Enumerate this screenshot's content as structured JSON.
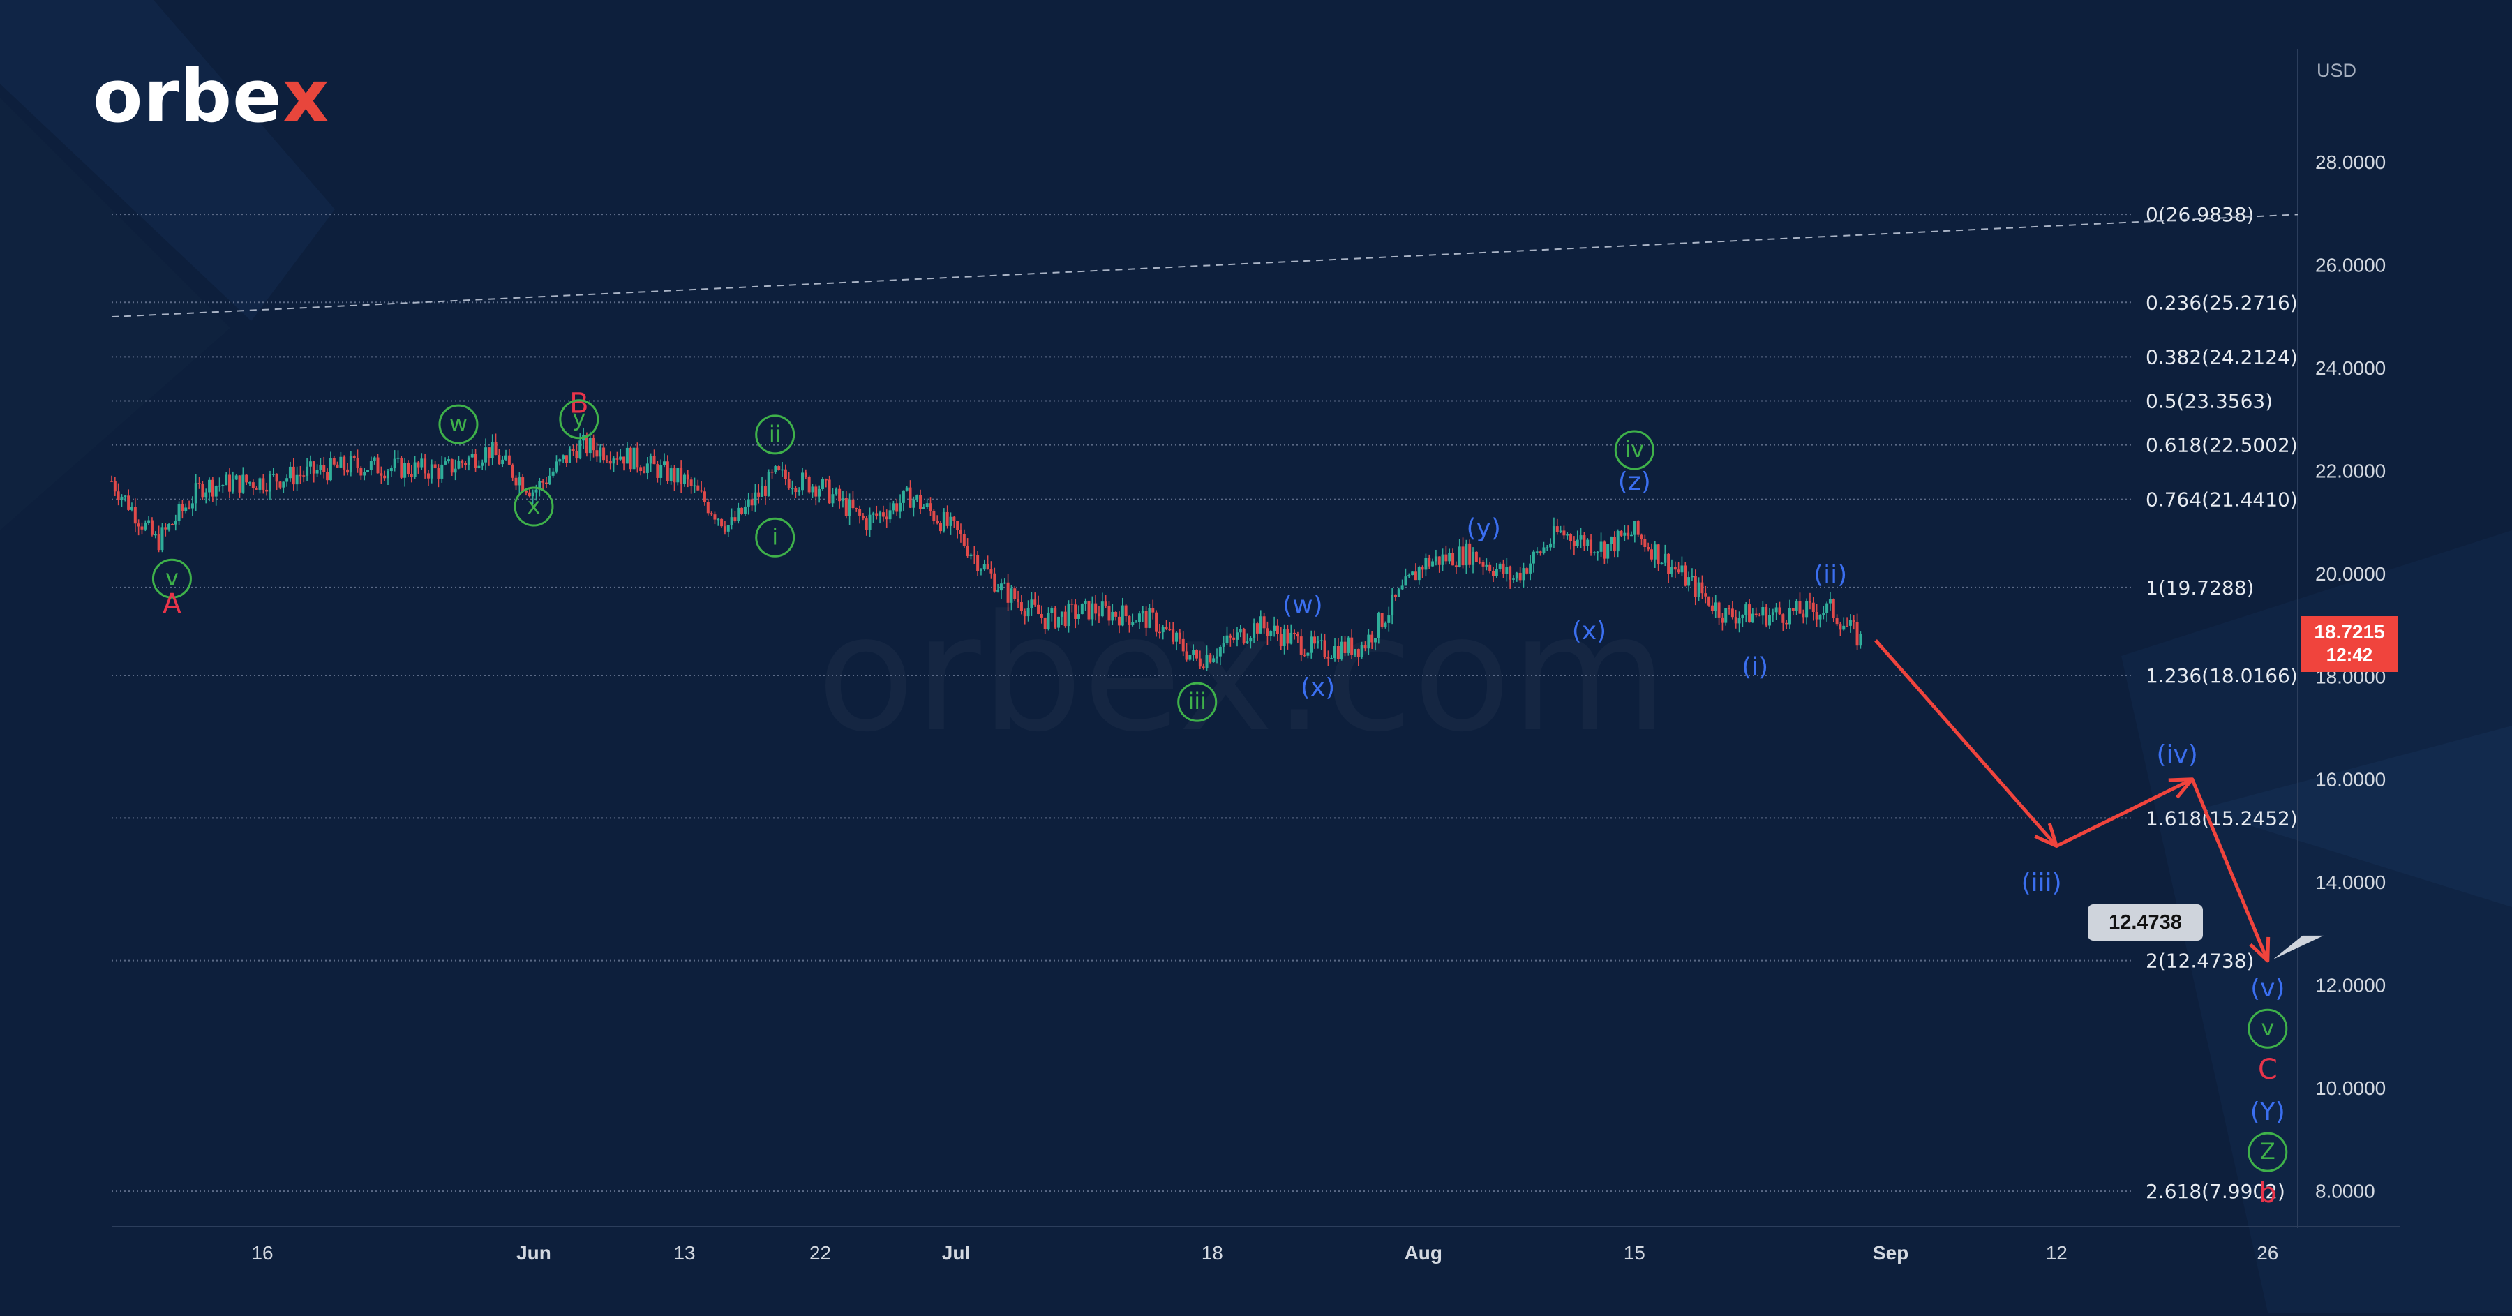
{
  "brand": {
    "logo_main": "orbe",
    "logo_accent": "x",
    "watermark": "orbex.com"
  },
  "colors": {
    "background": "#0d1f3c",
    "grid": "#5b6a86",
    "up": "#2fae9a",
    "down": "#e04a4a",
    "projection": "#f0443d",
    "green_wave": "#3fb14a",
    "blue_wave": "#3b6ff0",
    "red_wave": "#e8344a"
  },
  "current_price": {
    "value": "18.7215",
    "timer": "12:42"
  },
  "target_box": "12.4738",
  "chart_data": {
    "type": "candlestick",
    "instrument_currency": "USD",
    "y_axis": {
      "label": "USD",
      "range": [
        7.3,
        30.2
      ],
      "ticks": [
        "28.0000",
        "26.0000",
        "24.0000",
        "22.0000",
        "20.0000",
        "18.0000",
        "16.0000",
        "14.0000",
        "12.0000",
        "10.0000",
        "8.0000"
      ]
    },
    "x_axis": {
      "range": [
        "2024-05-06",
        "2024-09-28"
      ],
      "ticks": [
        {
          "date": "2024-05-16",
          "label": "16"
        },
        {
          "date": "2024-06-03",
          "label": "Jun"
        },
        {
          "date": "2024-06-13",
          "label": "13"
        },
        {
          "date": "2024-06-22",
          "label": "22"
        },
        {
          "date": "2024-07-01",
          "label": "Jul"
        },
        {
          "date": "2024-07-18",
          "label": "18"
        },
        {
          "date": "2024-08-01",
          "label": "Aug"
        },
        {
          "date": "2024-08-15",
          "label": "15"
        },
        {
          "date": "2024-09-01",
          "label": "Sep"
        },
        {
          "date": "2024-09-12",
          "label": "12"
        },
        {
          "date": "2024-09-26",
          "label": "26"
        }
      ]
    },
    "price_path": [
      [
        "2024-05-06",
        21.8
      ],
      [
        "2024-05-09",
        20.6
      ],
      [
        "2024-05-12",
        21.7
      ],
      [
        "2024-05-16",
        21.8
      ],
      [
        "2024-05-22",
        22.1
      ],
      [
        "2024-05-28",
        22.0
      ],
      [
        "2024-05-31",
        22.4
      ],
      [
        "2024-06-03",
        21.6
      ],
      [
        "2024-06-06",
        22.5
      ],
      [
        "2024-06-09",
        22.3
      ],
      [
        "2024-06-13",
        21.8
      ],
      [
        "2024-06-16",
        20.9
      ],
      [
        "2024-06-19",
        21.9
      ],
      [
        "2024-06-22",
        21.7
      ],
      [
        "2024-06-25",
        21.0
      ],
      [
        "2024-06-28",
        21.5
      ],
      [
        "2024-07-01",
        20.8
      ],
      [
        "2024-07-04",
        19.7
      ],
      [
        "2024-07-07",
        19.1
      ],
      [
        "2024-07-10",
        19.3
      ],
      [
        "2024-07-14",
        19.1
      ],
      [
        "2024-07-17",
        18.3
      ],
      [
        "2024-07-21",
        19.0
      ],
      [
        "2024-07-25",
        18.5
      ],
      [
        "2024-07-28",
        18.6
      ],
      [
        "2024-08-01",
        20.2
      ],
      [
        "2024-08-04",
        20.4
      ],
      [
        "2024-08-07",
        19.9
      ],
      [
        "2024-08-10",
        20.8
      ],
      [
        "2024-08-13",
        20.5
      ],
      [
        "2024-08-15",
        20.8
      ],
      [
        "2024-08-18",
        20.0
      ],
      [
        "2024-08-21",
        19.2
      ],
      [
        "2024-08-24",
        19.2
      ],
      [
        "2024-08-28",
        19.3
      ],
      [
        "2024-08-30",
        18.7
      ]
    ],
    "trend_line": {
      "start": [
        "2024-05-06",
        24.99
      ],
      "end": [
        "2024-09-28",
        26.98
      ],
      "style": "dashed"
    },
    "fibonacci_levels": [
      {
        "level": "0",
        "value": 26.9838,
        "label": "0(26.9838)"
      },
      {
        "level": "0.236",
        "value": 25.2716,
        "label": "0.236(25.2716)"
      },
      {
        "level": "0.382",
        "value": 24.2124,
        "label": "0.382(24.2124)"
      },
      {
        "level": "0.5",
        "value": 23.3563,
        "label": "0.5(23.3563)"
      },
      {
        "level": "0.618",
        "value": 22.5002,
        "label": "0.618(22.5002)"
      },
      {
        "level": "0.764",
        "value": 21.441,
        "label": "0.764(21.4410)"
      },
      {
        "level": "1",
        "value": 19.7288,
        "label": "1(19.7288)"
      },
      {
        "level": "1.236",
        "value": 18.0166,
        "label": "1.236(18.0166)"
      },
      {
        "level": "1.618",
        "value": 15.2452,
        "label": "1.618(15.2452)"
      },
      {
        "level": "2",
        "value": 12.4738,
        "label": "2(12.4738)"
      },
      {
        "level": "2.618",
        "value": 7.9902,
        "label": "2.618(7.9902)"
      }
    ],
    "projection_path": [
      [
        "2024-08-31",
        18.7
      ],
      [
        "2024-09-12",
        14.7
      ],
      [
        "2024-09-21",
        16.0
      ],
      [
        "2024-09-26",
        12.47
      ]
    ],
    "wave_labels": [
      {
        "text": "v",
        "style": "green-circle",
        "date": "2024-05-10",
        "price": 19.9
      },
      {
        "text": "A",
        "style": "red",
        "date": "2024-05-10",
        "price": 19.4
      },
      {
        "text": "w",
        "style": "green-circle",
        "date": "2024-05-29",
        "price": 22.9
      },
      {
        "text": "x",
        "style": "green-circle",
        "date": "2024-06-03",
        "price": 21.3
      },
      {
        "text": "B",
        "style": "red",
        "date": "2024-06-06",
        "price": 23.3
      },
      {
        "text": "y",
        "style": "green-circle",
        "date": "2024-06-06",
        "price": 23.0
      },
      {
        "text": "i",
        "style": "green-circle",
        "date": "2024-06-19",
        "price": 20.7
      },
      {
        "text": "ii",
        "style": "green-circle",
        "date": "2024-06-19",
        "price": 22.7
      },
      {
        "text": "iii",
        "style": "green-circle",
        "date": "2024-07-17",
        "price": 17.5
      },
      {
        "text": "(w)",
        "style": "blue",
        "date": "2024-07-24",
        "price": 19.4
      },
      {
        "text": "(x)",
        "style": "blue",
        "date": "2024-07-25",
        "price": 17.8
      },
      {
        "text": "(y)",
        "style": "blue",
        "date": "2024-08-05",
        "price": 20.9
      },
      {
        "text": "(x)",
        "style": "blue",
        "date": "2024-08-12",
        "price": 18.9
      },
      {
        "text": "(z)",
        "style": "blue",
        "date": "2024-08-15",
        "price": 21.8
      },
      {
        "text": "iv",
        "style": "green-circle",
        "date": "2024-08-15",
        "price": 22.4
      },
      {
        "text": "(i)",
        "style": "blue",
        "date": "2024-08-23",
        "price": 18.2
      },
      {
        "text": "(ii)",
        "style": "blue",
        "date": "2024-08-28",
        "price": 20.0
      },
      {
        "text": "(iii)",
        "style": "blue",
        "date": "2024-09-11",
        "price": 14.0
      },
      {
        "text": "(iv)",
        "style": "blue",
        "date": "2024-09-20",
        "price": 16.5
      },
      {
        "text": "(v)",
        "style": "blue",
        "date": "2024-09-26",
        "price": 11.95
      },
      {
        "text": "v",
        "style": "green-circle",
        "date": "2024-09-26",
        "price": 11.15
      },
      {
        "text": "C",
        "style": "red",
        "date": "2024-09-26",
        "price": 10.35
      },
      {
        "text": "(Y)",
        "style": "blue",
        "date": "2024-09-26",
        "price": 9.55
      },
      {
        "text": "Z",
        "style": "green-circle",
        "date": "2024-09-26",
        "price": 8.75
      },
      {
        "text": "b",
        "style": "red",
        "date": "2024-09-26",
        "price": 7.95
      }
    ]
  }
}
